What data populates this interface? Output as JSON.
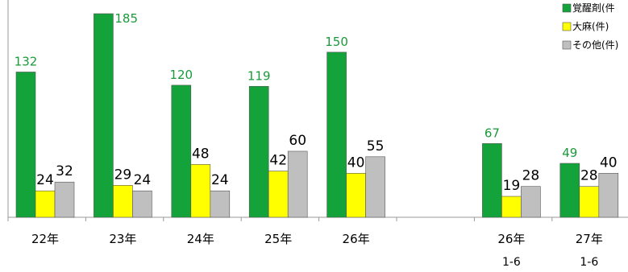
{
  "chart_data": {
    "type": "bar",
    "categories": [
      {
        "line1": "22年",
        "line2": ""
      },
      {
        "line1": "23年",
        "line2": ""
      },
      {
        "line1": "24年",
        "line2": ""
      },
      {
        "line1": "25年",
        "line2": ""
      },
      {
        "line1": "26年",
        "line2": ""
      },
      {
        "line1": "",
        "line2": ""
      },
      {
        "line1": "26年",
        "line2": "1-6"
      },
      {
        "line1": "27年",
        "line2": "1-6"
      }
    ],
    "series": [
      {
        "name": "覚醒剤(件",
        "color": "#13a33a",
        "label_color": "#1a9a3a",
        "values": [
          132,
          185,
          120,
          119,
          150,
          null,
          67,
          49
        ]
      },
      {
        "name": "大麻(件)",
        "color": "#ffff00",
        "label_color": "#000000",
        "values": [
          24,
          29,
          48,
          42,
          40,
          null,
          19,
          28
        ]
      },
      {
        "name": "その他(件)",
        "color": "#bfbfbf",
        "label_color": "#000000",
        "values": [
          32,
          24,
          24,
          60,
          55,
          null,
          28,
          40
        ]
      }
    ],
    "ylim": [
      0,
      185
    ],
    "grid": false,
    "legend_position": "top-right"
  }
}
